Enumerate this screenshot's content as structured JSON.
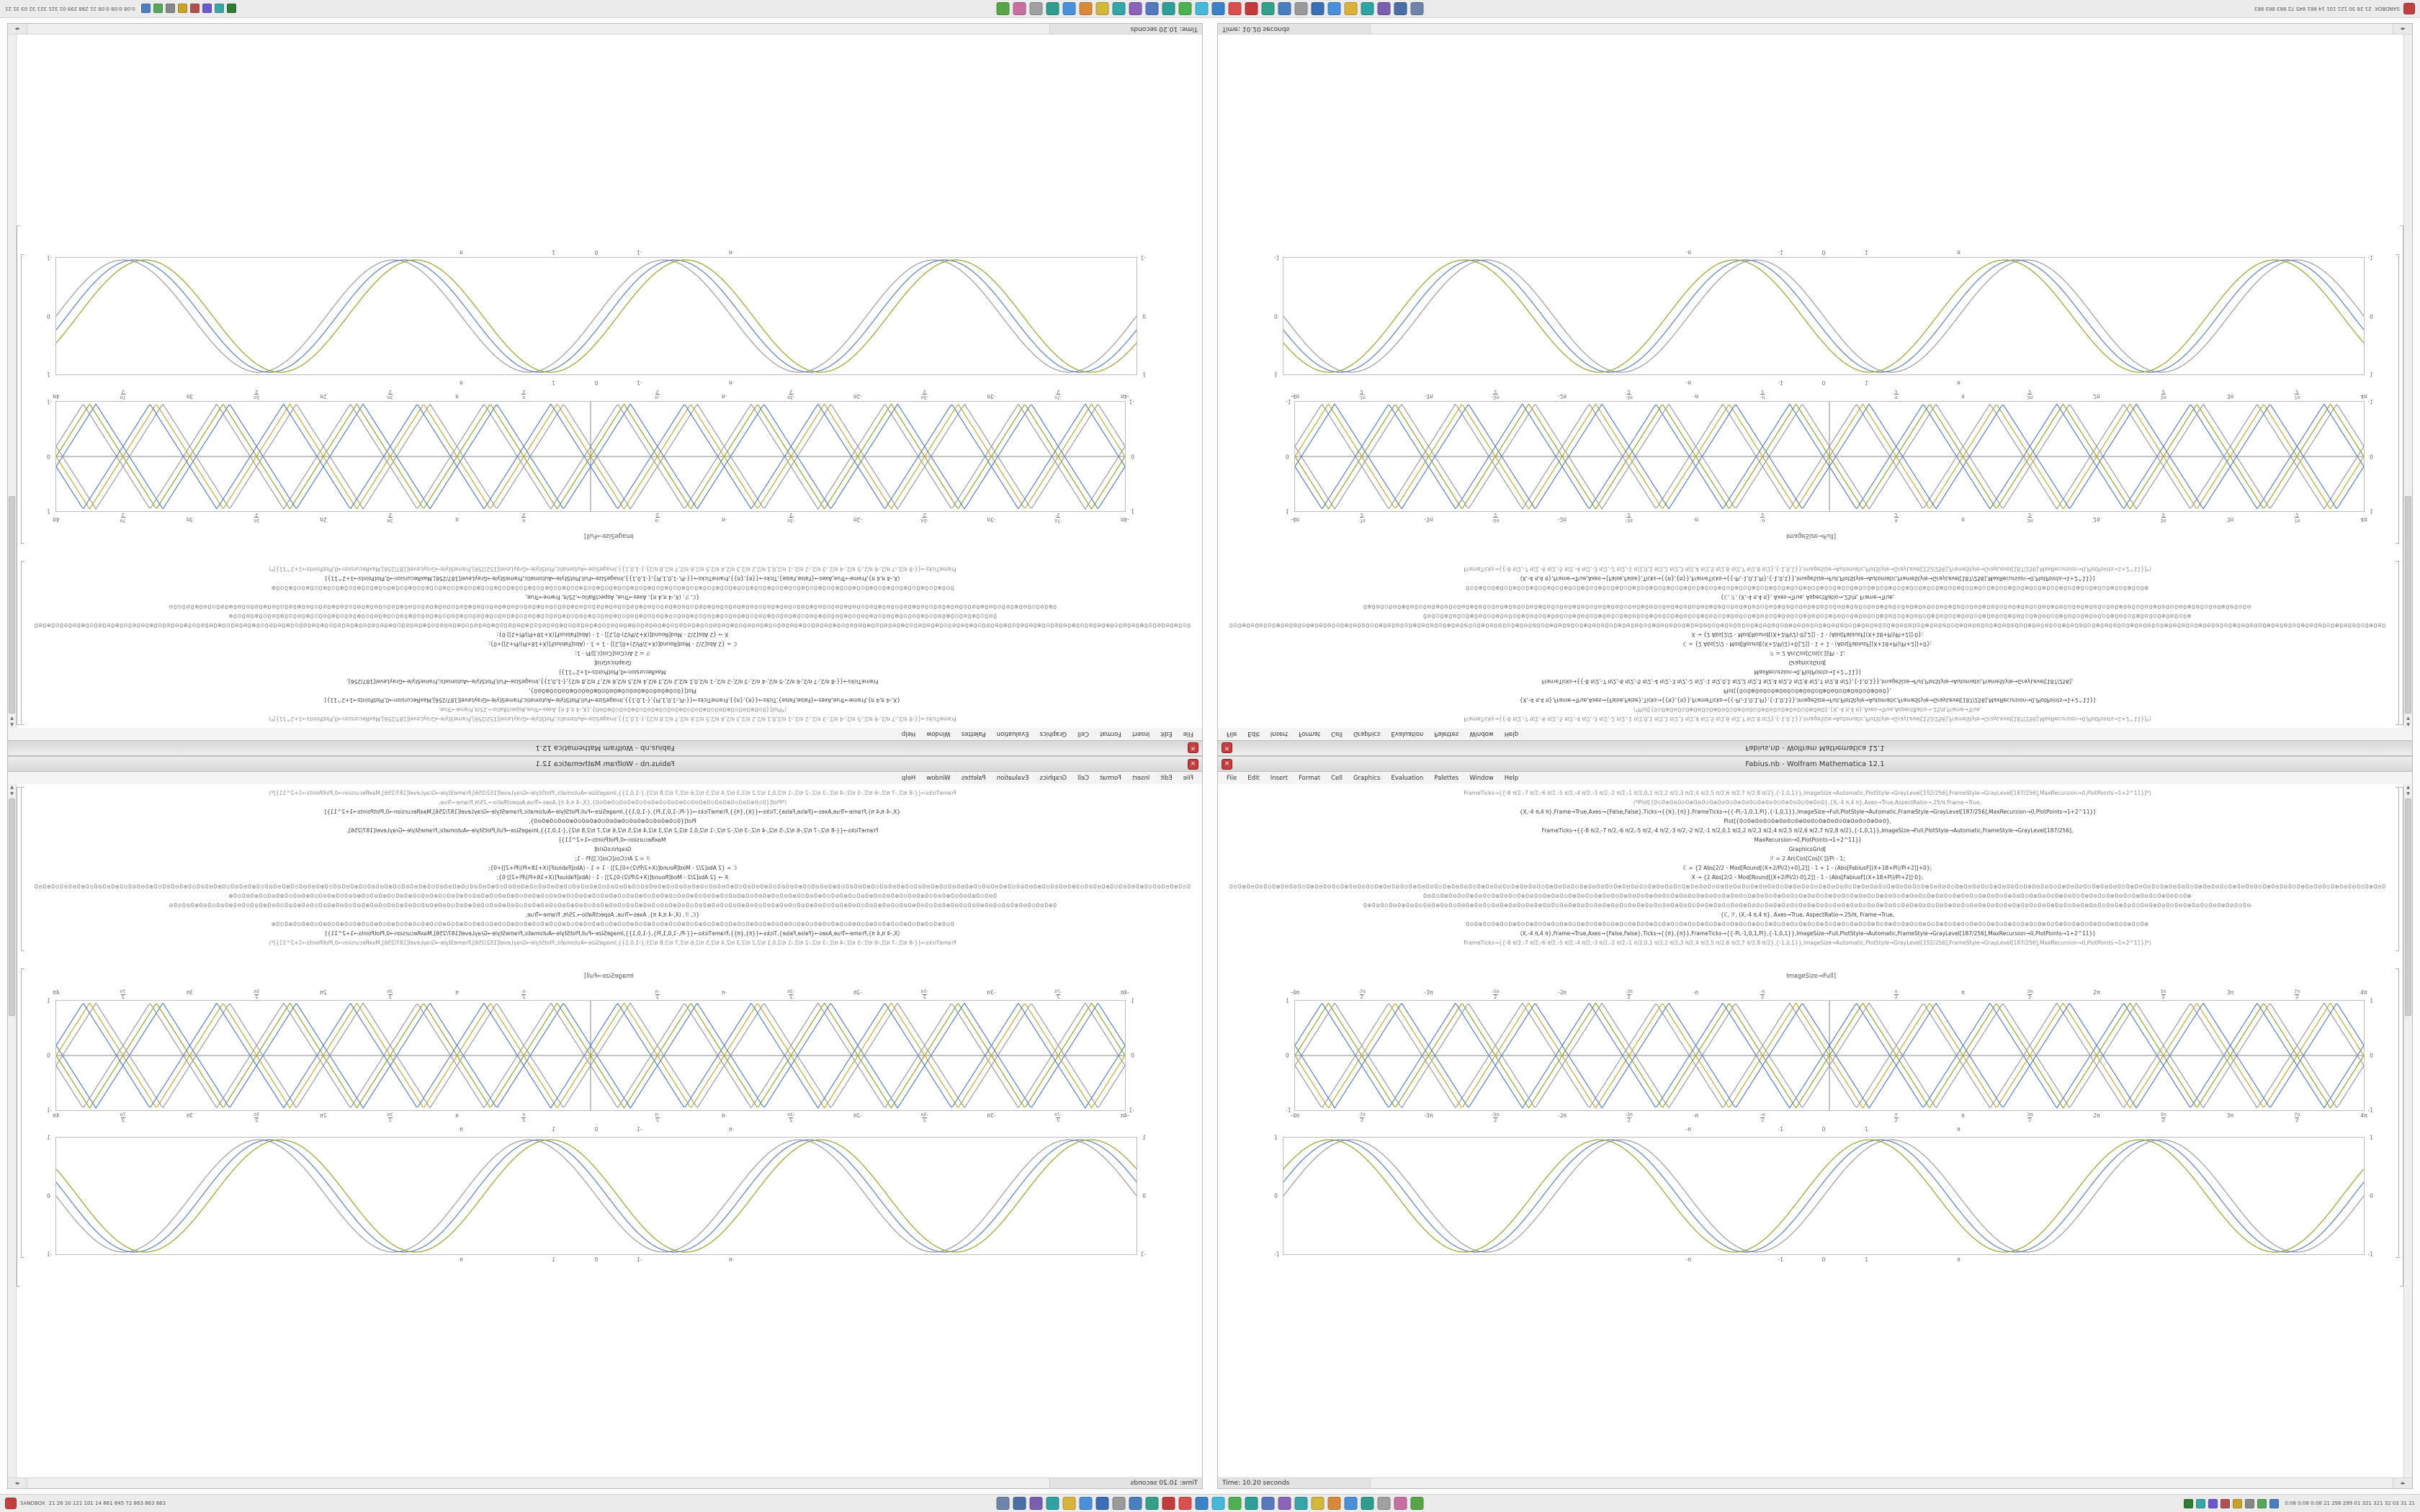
{
  "window": {
    "title": "Fabius.nb - Wolfram Mathematica 12.1",
    "menus": [
      "File",
      "Edit",
      "Insert",
      "Format",
      "Cell",
      "Graphics",
      "Evaluation",
      "Palettes",
      "Window",
      "Help"
    ],
    "status_time": "Time: 10.20 seconds",
    "output_label": "ImageSize→Full]",
    "code_lines": [
      {
        "t": "FrameTicks→{{-8 π/2,-7 π/2,-6 π/2,-5 π/2,-4 π/2,-3 π/2,-2 π/2,-1 π/2,0,1 π/2,2 π/2,3 π/2,4 π/2,5 π/2,6 π/2,7 π/2,8 π/2},{-1,0,1}},ImageSize→Automatic,PlotStyle→GrayLevel[152/256],FrameStyle→GrayLevel[187/256],MaxRecursion→0,PlotPoints→1+2^11}]*)",
        "cls": "c-gray"
      },
      {
        "t": "(*Plot[{0⊙0⊕0⊖0⊙0⊕0⊖0⊙0⊕0⊖0⊙0⊕0⊖0⊙0⊕0⊖0⊙0⊕0⊖0⊙0⊕0⊖0},{X,-4 π,4 π},Axes→True,AspectRatio→.25/π,Frame→True,",
        "cls": "c-gray"
      },
      {
        "t": "{X,-4 π,4 π},Frame→True,Axes→{False,False},Ticks→{{π},{π}},FrameTicks→{{-Pi,-1,0,1,Pi},{-1,0,1}},ImageSize→Full,PlotStyle→Automatic,FrameStyle→GrayLevel[187/256],MaxRecursion→0,PlotPoints→1+2^11}]",
        "cls": ""
      },
      {
        "t": "Plot[{0⊙0⊕0⊖0⊙0⊕0⊖0⊙0⊕0⊖0⊙0⊕0⊖0⊙0⊕0⊖0⊙0⊕0⊖0},",
        "cls": ""
      },
      {
        "t": "FrameTicks→{{-8 π/2,-7 π/2,-6 π/2,-5 π/2,-4 π/2,-3 π/2,-2 π/2,-1 π/2,0,1 π/2,2 π/2,3 π/2,4 π/2,5 π/2,6 π/2,7 π/2,8 π/2},{-1,0,1}},ImageSize→Full,PlotStyle→Automatic,FrameStyle→GrayLevel[187/256],",
        "cls": ""
      },
      {
        "t": "MaxRecursion→0,PlotPoints→1+2^11}]",
        "cls": ""
      },
      {
        "t": "GraphicsGrid[",
        "cls": ""
      },
      {
        "t": "ℱ = 2 ArcCos[Cos[ℂ]]/Pi - 1;",
        "cls": ""
      },
      {
        "t": "ℂ = {2 Abs[2/2 - Mod[Round[(X+2/Pi/2)+0],2]] - 1 + 1 - (Abs[FabiusF[(X+18+Pi)/Pi+2]]+0};",
        "cls": ""
      },
      {
        "t": "X → {2 Abs[2/2 - Mod[Round[(X+2/Pi/2)-0],2]] - 1 - (Abs[FabiusF[(X+18+Pi)/Pi+2]]·0};",
        "cls": ""
      },
      {
        "pat": "0⊙0⊕0⊖0⊘",
        "n": 34,
        "cls": "c-glyph"
      },
      {
        "pat": "0⊖0⊙0⊕",
        "n": 30,
        "cls": "c-glyph"
      },
      {
        "pat": "0⊕0⊘0⊙0⊖",
        "n": 26,
        "cls": "c-glyph"
      },
      {
        "t": "{ℂ, ℱ, (X,-4 π,4 π}, Axes→True, AspectRatio→.25/π, Frame→True,",
        "cls": ""
      },
      {
        "pat": "0⊙0⊕",
        "n": 40,
        "cls": "c-glyph"
      },
      {
        "t": "(X,-4 π,4 π},Frame→True,Axes→{False,False},Ticks→{{π},{π}},FrameTicks→{{-Pi,-1,0,1,Pi},{-1,0,1}},ImageSize→Full,PlotStyle→Automatic,FrameStyle→GrayLevel[187/256],MaxRecursion→0,PlotPoints→1+2^11}]",
        "cls": ""
      },
      {
        "t": "FrameTicks→{{-8 π/2,-7 π/2,-6 π/2,-5 π/2,-4 π/2,-3 π/2,-2 π/2,-1 π/2,0,1 π/2,2 π/2,3 π/2,4 π/2,5 π/2,6 π/2,7 π/2,8 π/2},{-1,0,1}},ImageSize→Automatic,PlotStyle→GrayLevel[152/256],FrameStyle→GrayLevel[187/256],MaxRecursion→0,PlotPoints→1+2^11}]*)",
        "cls": "c-gray"
      }
    ]
  },
  "chart_data": [
    {
      "name": "triangle-grid-plot",
      "type": "line",
      "x_range": [
        -12.566,
        12.566
      ],
      "ylim": [
        -1,
        1
      ],
      "axes": true,
      "grid": false,
      "frame_color": "#bdbdbd",
      "xticks": [
        {
          "v": -12.566,
          "l": "-4π"
        },
        {
          "v": -10.996,
          "l": "-7π/2"
        },
        {
          "v": -9.425,
          "l": "-3π"
        },
        {
          "v": -7.854,
          "l": "-5π/2"
        },
        {
          "v": -6.283,
          "l": "-2π"
        },
        {
          "v": -4.712,
          "l": "-3π/2"
        },
        {
          "v": -3.142,
          "l": "-π"
        },
        {
          "v": -1.571,
          "l": "-π/2"
        },
        {
          "v": 1.571,
          "l": "π/2"
        },
        {
          "v": 3.142,
          "l": "π"
        },
        {
          "v": 4.712,
          "l": "3π/2"
        },
        {
          "v": 6.283,
          "l": "2π"
        },
        {
          "v": 7.854,
          "l": "5π/2"
        },
        {
          "v": 9.425,
          "l": "3π"
        },
        {
          "v": 10.996,
          "l": "7π/2"
        },
        {
          "v": 12.566,
          "l": "4π"
        }
      ],
      "yticks": [
        {
          "v": 1,
          "l": "1"
        },
        {
          "v": 0,
          "l": "0"
        },
        {
          "v": -1,
          "l": "-1"
        }
      ],
      "series": [
        {
          "fn": "tri",
          "freq": 2,
          "phase": 0,
          "sign": 1,
          "color": "#98a22c"
        },
        {
          "fn": "tri",
          "freq": 2,
          "phase": 0,
          "sign": -1,
          "color": "#b9ae3a"
        },
        {
          "fn": "tri",
          "freq": 2,
          "phase": 0.3,
          "sign": 1,
          "color": "#5e81b5"
        },
        {
          "fn": "tri",
          "freq": 2,
          "phase": 0.3,
          "sign": -1,
          "color": "#9c9c9c"
        },
        {
          "fn": "tri",
          "freq": 2,
          "phase": -0.3,
          "sign": 1,
          "color": "#9c9c9c"
        },
        {
          "fn": "tri",
          "freq": 2,
          "phase": -0.3,
          "sign": -1,
          "color": "#5e81b5"
        }
      ]
    },
    {
      "name": "sine-plot",
      "type": "line",
      "x_range": [
        -12.566,
        12.566
      ],
      "ylim": [
        -1,
        1
      ],
      "axes": false,
      "grid": false,
      "frame_color": "#bdbdbd",
      "xticks": [
        {
          "v": -3.142,
          "l": "-π"
        },
        {
          "v": -1,
          "l": "-1"
        },
        {
          "v": 0,
          "l": "0"
        },
        {
          "v": 1,
          "l": "1"
        },
        {
          "v": 3.142,
          "l": "π"
        }
      ],
      "yticks": [
        {
          "v": 1,
          "l": "1"
        },
        {
          "v": 0,
          "l": "0"
        },
        {
          "v": -1,
          "l": "-1"
        }
      ],
      "series": [
        {
          "fn": "sin",
          "freq": 1,
          "phase": 0,
          "sign": 1,
          "color": "#9c9c9c"
        },
        {
          "fn": "sin",
          "freq": 1,
          "phase": 0.25,
          "sign": 1,
          "color": "#5e81b5"
        },
        {
          "fn": "sin",
          "freq": 1,
          "phase": 0.5,
          "sign": 1,
          "color": "#98a22c"
        }
      ]
    }
  ],
  "taskbar": {
    "start_label": "SANDBOX",
    "start_stats": "21 26 30 121 101 14 861 845 72 863 863 863",
    "tray_text": "0:08 0:08 0:08 21 298 299 01 321 321 32 03 31 21",
    "app_icon_colors": [
      "#6f84a8",
      "#4a6fa5",
      "#7a5fb0",
      "#2fa3a3",
      "#d9b23a",
      "#4a90d9",
      "#3b6fb5",
      "#9a9a9a",
      "#4a7fbf",
      "#35a08a",
      "#c23b3b",
      "#d94f4f",
      "#3b82c4",
      "#46b8d8",
      "#4caf50",
      "#2e9e97",
      "#5577bb",
      "#8a63b8",
      "#35a5a5",
      "#d4b63c",
      "#d88a3a",
      "#4a90d9",
      "#2f9d8e",
      "#a0a0a0",
      "#c76fa0",
      "#56a546"
    ],
    "tray_icon_colors": [
      "#4a7fbf",
      "#58a55c",
      "#888888",
      "#c9a227",
      "#b05050",
      "#6a5acd",
      "#3aa6a6",
      "#2f7d32"
    ]
  },
  "colors": {
    "axis": "#8a8a8a",
    "curve_blue": "#5e81b5",
    "curve_olive": "#98a22c",
    "curve_gray": "#9c9c9c"
  },
  "icons": {
    "close": "×",
    "scroll_up": "▲",
    "scroll_down": "▼",
    "scroll_left": "◂",
    "scroll_right": "▸"
  }
}
